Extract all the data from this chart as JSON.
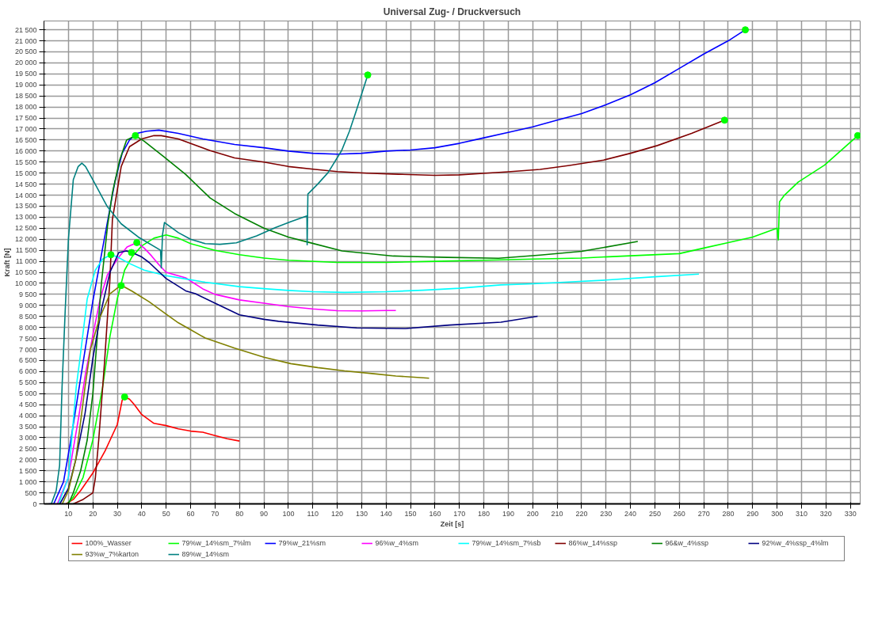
{
  "chart_data": {
    "type": "line",
    "title": "Universal Zug- / Druckversuch",
    "xlabel": "Zeit [s]",
    "ylabel": "Kraft [N]",
    "xlim": [
      0,
      334
    ],
    "ylim": [
      0,
      21900
    ],
    "xticks": [
      10,
      20,
      30,
      40,
      50,
      60,
      70,
      80,
      90,
      100,
      110,
      120,
      130,
      140,
      150,
      160,
      170,
      180,
      190,
      200,
      210,
      220,
      230,
      240,
      250,
      260,
      270,
      280,
      290,
      300,
      310,
      320,
      330
    ],
    "yticks": [
      0,
      500,
      {
        "value": 1000,
        "label": "1 000"
      },
      {
        "value": 1500,
        "label": "1 500"
      },
      {
        "value": 2000,
        "label": "2 000"
      },
      {
        "value": 2500,
        "label": "2 500"
      },
      {
        "value": 3000,
        "label": "3 000"
      },
      {
        "value": 3500,
        "label": "3 500"
      },
      {
        "value": 4000,
        "label": "4 000"
      },
      {
        "value": 4500,
        "label": "4 500"
      },
      {
        "value": 5000,
        "label": "5 000"
      },
      {
        "value": 5500,
        "label": "5 500"
      },
      {
        "value": 6000,
        "label": "6 000"
      },
      {
        "value": 6500,
        "label": "6 500"
      },
      {
        "value": 7000,
        "label": "7 000"
      },
      {
        "value": 7500,
        "label": "7 500"
      },
      {
        "value": 8000,
        "label": "8 000"
      },
      {
        "value": 8500,
        "label": "8 500"
      },
      {
        "value": 9000,
        "label": "9 000"
      },
      {
        "value": 9500,
        "label": "9 500"
      },
      {
        "value": 10000,
        "label": "10 000"
      },
      {
        "value": 10500,
        "label": "10 500"
      },
      {
        "value": 11000,
        "label": "11 000"
      },
      {
        "value": 11500,
        "label": "11 500"
      },
      {
        "value": 12000,
        "label": "12 000"
      },
      {
        "value": 12500,
        "label": "12 500"
      },
      {
        "value": 13000,
        "label": "13 000"
      },
      {
        "value": 13500,
        "label": "13 500"
      },
      {
        "value": 14000,
        "label": "14 000"
      },
      {
        "value": 14500,
        "label": "14 500"
      },
      {
        "value": 15000,
        "label": "15 000"
      },
      {
        "value": 15500,
        "label": "15 500"
      },
      {
        "value": 16000,
        "label": "16 000"
      },
      {
        "value": 16500,
        "label": "16 500"
      },
      {
        "value": 17000,
        "label": "17 000"
      },
      {
        "value": 17500,
        "label": "17 500"
      },
      {
        "value": 18000,
        "label": "18 000"
      },
      {
        "value": 18500,
        "label": "18 500"
      },
      {
        "value": 19000,
        "label": "19 000"
      },
      {
        "value": 19500,
        "label": "19 500"
      },
      {
        "value": 20000,
        "label": "20 000"
      },
      {
        "value": 20500,
        "label": "20 500"
      },
      {
        "value": 21000,
        "label": "21 000"
      },
      {
        "value": 21500,
        "label": "21 500"
      }
    ],
    "grid": true,
    "legend": "bottom",
    "marker": "none",
    "line_style": "solid",
    "series": [
      {
        "name": "100%_Wasser",
        "color": "#ff0000",
        "x": [
          9,
          12,
          15,
          20,
          25,
          30,
          32,
          33,
          35,
          37,
          40,
          45,
          50,
          55,
          60,
          65,
          70,
          75,
          80
        ],
        "values": [
          0,
          200,
          600,
          1400,
          2400,
          3600,
          4700,
          4850,
          4750,
          4500,
          4050,
          3650,
          3550,
          3400,
          3300,
          3250,
          3100,
          2950,
          2850
        ]
      },
      {
        "name": "79%w_14%sm_7%lm",
        "color": "#00ff00",
        "x": [
          9.5,
          12,
          16,
          20,
          24,
          27,
          30,
          33,
          36,
          40,
          45,
          50,
          55,
          60,
          70,
          80,
          90,
          100,
          120,
          140,
          160,
          180,
          200,
          220,
          240,
          260,
          270,
          280,
          290,
          300,
          300.5,
          301,
          303,
          308.7,
          319.4,
          333
        ],
        "values": [
          0,
          300,
          1200,
          2900,
          5300,
          7600,
          9300,
          10600,
          11200,
          11700,
          12050,
          12200,
          12050,
          11800,
          11500,
          11300,
          11150,
          11050,
          10950,
          10950,
          11000,
          11050,
          11100,
          11150,
          11250,
          11350,
          11600,
          11850,
          12100,
          12500,
          11970,
          13700,
          14000,
          14600,
          15360,
          16700
        ]
      },
      {
        "name": "79%w_21%sm",
        "color": "#0000ff",
        "x": [
          2,
          4,
          8,
          11,
          14,
          17,
          20,
          23,
          26,
          29,
          32,
          35,
          38,
          42,
          47,
          55,
          65,
          78,
          90,
          100,
          110,
          120,
          130,
          140,
          150,
          160,
          170,
          180,
          190,
          200,
          210,
          220,
          230,
          240,
          250,
          260,
          270,
          280,
          287
        ],
        "values": [
          0,
          0,
          1000,
          2900,
          5000,
          7100,
          9200,
          11000,
          12800,
          14600,
          15900,
          16500,
          16800,
          16900,
          16950,
          16800,
          16550,
          16300,
          16150,
          16000,
          15900,
          15860,
          15900,
          16000,
          16050,
          16150,
          16350,
          16600,
          16850,
          17100,
          17400,
          17700,
          18100,
          18550,
          19100,
          19750,
          20400,
          21000,
          21500
        ]
      },
      {
        "name": "96%w_4%sm",
        "color": "#ff00ff",
        "x": [
          5.5,
          10,
          14,
          17,
          20,
          23,
          26,
          30,
          34,
          38,
          41,
          44,
          47,
          50,
          58,
          65,
          70,
          80,
          90,
          100,
          110,
          120,
          130,
          140,
          144
        ],
        "values": [
          0,
          1200,
          3800,
          5900,
          7650,
          9300,
          10400,
          11100,
          11650,
          11850,
          11600,
          11250,
          10850,
          10500,
          10250,
          9750,
          9500,
          9250,
          9100,
          8950,
          8840,
          8760,
          8750,
          8770,
          8770
        ]
      },
      {
        "name": "79%w_14%sm_7%sb",
        "color": "#00ffff",
        "x": [
          6,
          10,
          13.2,
          14.5,
          17.7,
          21,
          24,
          27.4,
          30,
          35,
          41,
          50,
          58,
          66,
          80,
          90,
          100,
          110,
          123,
          140,
          155,
          170,
          187,
          200,
          213,
          230,
          250,
          268
        ],
        "values": [
          0,
          1200,
          5300,
          6400,
          9300,
          10600,
          11100,
          11300,
          11200,
          10900,
          10600,
          10350,
          10200,
          10050,
          9850,
          9760,
          9680,
          9620,
          9590,
          9620,
          9690,
          9780,
          9930,
          9980,
          10050,
          10150,
          10300,
          10420
        ]
      },
      {
        "name": "86%w_14%ssp",
        "color": "#800000",
        "x": [
          12,
          16,
          20,
          21,
          22.4,
          24.8,
          27,
          28,
          31.6,
          35,
          40,
          45,
          48,
          55,
          68,
          78,
          90,
          100,
          111,
          120,
          132,
          145,
          160,
          170,
          181,
          190,
          203,
          215,
          229,
          240,
          251,
          265,
          278.5
        ],
        "values": [
          0,
          200,
          500,
          1150,
          2900,
          6450,
          10200,
          12900,
          15300,
          16200,
          16550,
          16700,
          16700,
          16550,
          16020,
          15690,
          15500,
          15300,
          15170,
          15070,
          15000,
          14950,
          14900,
          14920,
          15000,
          15060,
          15170,
          15350,
          15590,
          15900,
          16250,
          16800,
          17400
        ]
      },
      {
        "name": "96&w_4%ssp",
        "color": "#008000",
        "x": [
          10,
          12,
          15,
          17.7,
          20,
          23.5,
          26,
          28,
          31,
          33.8,
          37.4,
          41,
          45,
          49,
          58,
          68,
          78,
          90,
          100,
          108,
          122,
          143,
          165,
          186,
          203,
          220,
          243
        ],
        "values": [
          0,
          500,
          1500,
          2900,
          5000,
          10000,
          12600,
          14100,
          15600,
          16500,
          16700,
          16450,
          16100,
          15750,
          14940,
          13870,
          13170,
          12500,
          12100,
          11870,
          11470,
          11240,
          11180,
          11140,
          11280,
          11450,
          11900
        ]
      },
      {
        "name": "92%w_4%ssp_4%lm",
        "color": "#000080",
        "x": [
          6.5,
          10,
          13,
          16.8,
          20,
          23.5,
          27,
          30.6,
          33.8,
          36,
          40,
          43,
          50,
          58,
          62,
          70,
          80,
          90,
          96,
          112,
          128,
          148,
          166,
          187,
          202
        ],
        "values": [
          0,
          700,
          2000,
          4100,
          6600,
          8800,
          10500,
          11400,
          11470,
          11400,
          11200,
          10950,
          10220,
          9660,
          9530,
          9100,
          8570,
          8370,
          8280,
          8110,
          7980,
          7950,
          8110,
          8240,
          8510
        ]
      },
      {
        "name": "93%w_7%karton",
        "color": "#808000",
        "x": [
          7.5,
          10,
          13,
          16.8,
          19,
          22.5,
          27,
          31.6,
          36,
          43,
          50,
          55,
          60,
          66,
          78,
          90,
          101,
          112,
          123,
          135,
          144,
          157.6
        ],
        "values": [
          0,
          600,
          2000,
          5300,
          7000,
          8340,
          9530,
          9920,
          9650,
          9170,
          8600,
          8210,
          7900,
          7520,
          7060,
          6650,
          6360,
          6180,
          6030,
          5900,
          5800,
          5700
        ]
      },
      {
        "name": "89%w_14%sm",
        "color": "#008080",
        "x": [
          3,
          5,
          6.4,
          7.4,
          8.7,
          10,
          12,
          14,
          15.5,
          17,
          20,
          25.8,
          31.6,
          38.6,
          47.7,
          48,
          48.5,
          49.3,
          55,
          60,
          66,
          72,
          78.7,
          87,
          94.7,
          101,
          107.6,
          107.7,
          108,
          112,
          116.3,
          121.8,
          125,
          128,
          132.5
        ],
        "values": [
          0,
          600,
          1750,
          5300,
          8800,
          12000,
          14700,
          15300,
          15450,
          15300,
          14700,
          13500,
          12700,
          12100,
          11500,
          10700,
          12200,
          12760,
          12300,
          12000,
          11800,
          11770,
          11840,
          12150,
          12530,
          12800,
          13060,
          11750,
          14050,
          14500,
          15030,
          16020,
          16900,
          17900,
          19450
        ]
      },
      {
        "type": "scatter",
        "marker": "circle",
        "color": "#00ff00",
        "x": [
          33,
          333,
          287,
          38,
          27.4,
          278.5,
          37.4,
          35.8,
          31.6,
          132.5
        ],
        "values": [
          4850,
          16700,
          21500,
          11850,
          11300,
          17400,
          16700,
          11400,
          9900,
          19450
        ]
      }
    ]
  }
}
